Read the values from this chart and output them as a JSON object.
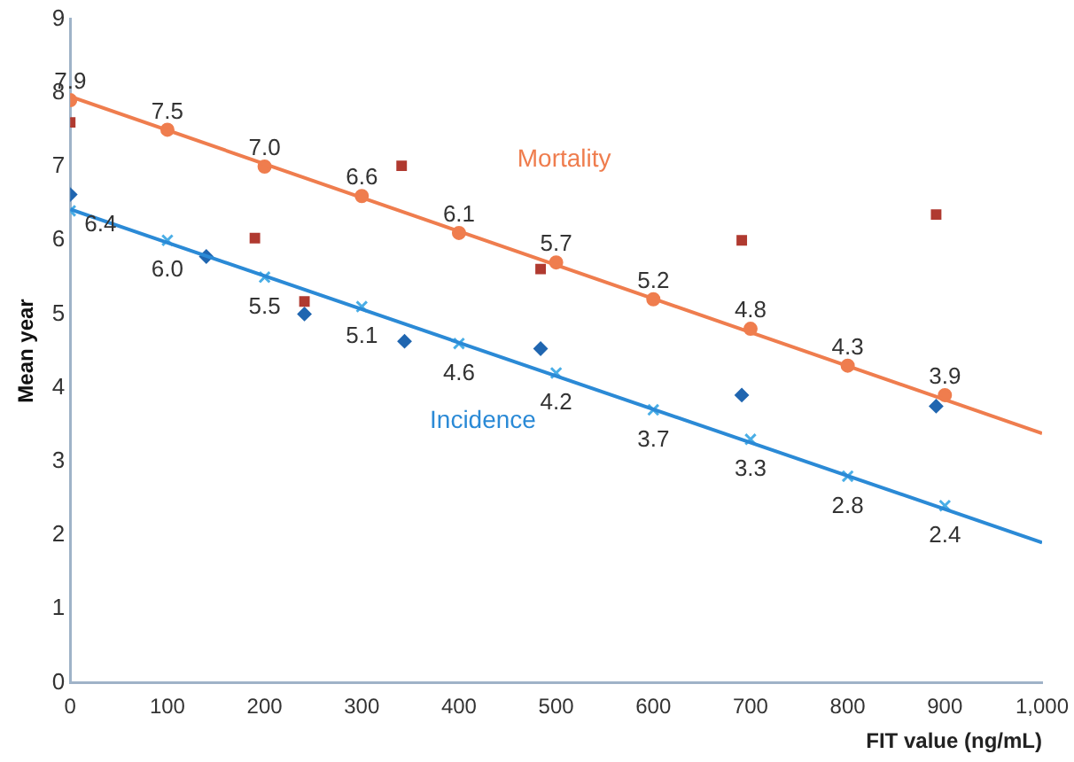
{
  "chart_data": {
    "type": "scatter",
    "xlabel": "FIT value (ng/mL)",
    "ylabel": "Mean year",
    "xlim": [
      0,
      1000
    ],
    "ylim": [
      0,
      9
    ],
    "xticks": [
      0,
      100,
      200,
      300,
      400,
      500,
      600,
      700,
      800,
      900,
      {
        "value": 1000,
        "label": "1,000"
      }
    ],
    "yticks": [
      0,
      1,
      2,
      3,
      4,
      5,
      6,
      7,
      8,
      9
    ],
    "grid": false,
    "legend": false,
    "series": [
      {
        "type": "line",
        "name": "Mortality",
        "color": "#ef7d4e",
        "marker": "none",
        "x": [
          0,
          1000
        ],
        "values": [
          7.95,
          3.38
        ]
      },
      {
        "type": "line",
        "name": "Incidence",
        "color": "#2b8ad6",
        "marker": "none",
        "x": [
          0,
          1000
        ],
        "values": [
          6.42,
          1.9
        ]
      },
      {
        "color": "#ef7d4e",
        "marker": "circle",
        "x": [
          0,
          100,
          200,
          300,
          400,
          500,
          600,
          700,
          800,
          900
        ],
        "values": [
          7.9,
          7.5,
          7.0,
          6.6,
          6.1,
          5.7,
          5.2,
          4.8,
          4.3,
          3.9
        ],
        "value_labels": [
          "7.9",
          "7.5",
          "7.0",
          "6.6",
          "6.1",
          "5.7",
          "5.2",
          "4.8",
          "4.3",
          "3.9"
        ]
      },
      {
        "color": "#4aaee6",
        "marker": "cross",
        "x": [
          0,
          100,
          200,
          300,
          400,
          500,
          600,
          700,
          800,
          900
        ],
        "values": [
          6.4,
          6.0,
          5.5,
          5.1,
          4.6,
          4.2,
          3.7,
          3.3,
          2.8,
          2.4
        ],
        "value_labels": [
          "6.4",
          "6.0",
          "5.5",
          "5.1",
          "4.6",
          "4.2",
          "3.7",
          "3.3",
          "2.8",
          "2.4"
        ]
      },
      {
        "color": "#b03a30",
        "marker": "square",
        "x": [
          0,
          190,
          241,
          341,
          484,
          691,
          891
        ],
        "values": [
          7.6,
          6.03,
          5.17,
          7.01,
          5.61,
          6.0,
          6.35
        ]
      },
      {
        "color": "#2066b0",
        "marker": "diamond",
        "x": [
          0,
          140,
          241,
          344,
          484,
          691,
          891
        ],
        "values": [
          6.62,
          5.78,
          5.0,
          4.63,
          4.53,
          3.9,
          3.75
        ]
      }
    ]
  }
}
